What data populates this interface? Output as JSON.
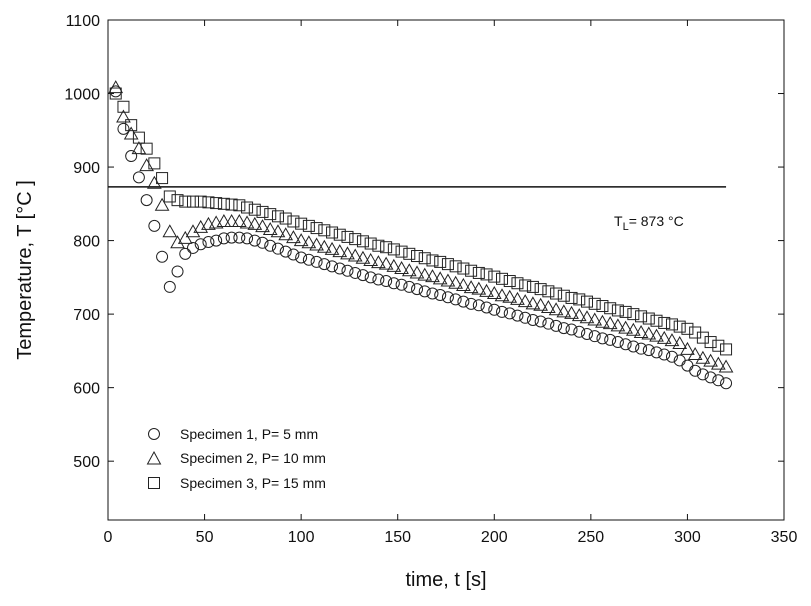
{
  "chart_data": {
    "type": "scatter",
    "title": "",
    "xlabel": "time, t [s]",
    "ylabel": "Temperature, T [°C ]",
    "xlim": [
      0,
      350
    ],
    "ylim": [
      420,
      1100
    ],
    "x_ticks": [
      0,
      50,
      100,
      150,
      200,
      250,
      300,
      350
    ],
    "y_ticks": [
      500,
      600,
      700,
      800,
      900,
      1000,
      1100
    ],
    "grid": false,
    "legend_position": "lower-left",
    "reference_line": {
      "y": 873,
      "x_range": [
        0,
        320
      ]
    },
    "annotation": {
      "prefix": "T",
      "subscript": "L",
      "suffix": "= 873 °C"
    },
    "series": [
      {
        "name": "Specimen 1, P= 5 mm",
        "marker": "circle",
        "color": "#222222",
        "x": [
          4,
          8,
          12,
          16,
          20,
          24,
          28,
          32,
          36,
          40,
          44,
          48,
          52,
          56,
          60,
          64,
          68,
          72,
          76,
          80,
          84,
          88,
          92,
          96,
          100,
          104,
          108,
          112,
          116,
          120,
          124,
          128,
          132,
          136,
          140,
          144,
          148,
          152,
          156,
          160,
          164,
          168,
          172,
          176,
          180,
          184,
          188,
          192,
          196,
          200,
          204,
          208,
          212,
          216,
          220,
          224,
          228,
          232,
          236,
          240,
          244,
          248,
          252,
          256,
          260,
          264,
          268,
          272,
          276,
          280,
          284,
          288,
          292,
          296,
          300,
          304,
          308,
          312,
          316,
          320
        ],
        "y": [
          1003,
          952,
          915,
          886,
          855,
          820,
          778,
          737,
          758,
          782,
          790,
          795,
          798,
          800,
          803,
          804,
          804,
          803,
          800,
          797,
          793,
          789,
          785,
          781,
          777,
          774,
          771,
          768,
          765,
          762,
          759,
          756,
          753,
          750,
          747,
          745,
          742,
          740,
          737,
          734,
          731,
          728,
          726,
          723,
          720,
          717,
          714,
          712,
          709,
          706,
          703,
          701,
          698,
          695,
          692,
          690,
          687,
          684,
          681,
          679,
          676,
          673,
          670,
          667,
          665,
          662,
          659,
          656,
          653,
          651,
          648,
          645,
          642,
          637,
          630,
          623,
          618,
          614,
          610,
          606
        ]
      },
      {
        "name": "Specimen 2, P= 10 mm",
        "marker": "triangle",
        "color": "#222222",
        "x": [
          4,
          8,
          12,
          16,
          20,
          24,
          28,
          32,
          36,
          40,
          44,
          48,
          52,
          56,
          60,
          64,
          68,
          72,
          76,
          80,
          84,
          88,
          92,
          96,
          100,
          104,
          108,
          112,
          116,
          120,
          124,
          128,
          132,
          136,
          140,
          144,
          148,
          152,
          156,
          160,
          164,
          168,
          172,
          176,
          180,
          184,
          188,
          192,
          196,
          200,
          204,
          208,
          212,
          216,
          220,
          224,
          228,
          232,
          236,
          240,
          244,
          248,
          252,
          256,
          260,
          264,
          268,
          272,
          276,
          280,
          284,
          288,
          292,
          296,
          300,
          304,
          308,
          312,
          316,
          320
        ],
        "y": [
          1008,
          968,
          945,
          925,
          902,
          878,
          848,
          812,
          797,
          803,
          812,
          818,
          822,
          824,
          826,
          826,
          826,
          824,
          822,
          819,
          815,
          812,
          808,
          804,
          800,
          797,
          794,
          791,
          788,
          785,
          782,
          779,
          776,
          773,
          770,
          768,
          765,
          762,
          759,
          756,
          753,
          751,
          748,
          745,
          742,
          739,
          736,
          734,
          731,
          728,
          725,
          723,
          720,
          717,
          714,
          712,
          709,
          706,
          703,
          701,
          698,
          695,
          692,
          689,
          687,
          684,
          681,
          678,
          675,
          673,
          670,
          667,
          664,
          660,
          652,
          645,
          640,
          636,
          632,
          628
        ]
      },
      {
        "name": "Specimen 3, P= 15 mm",
        "marker": "square",
        "color": "#222222",
        "x": [
          4,
          8,
          12,
          16,
          20,
          24,
          28,
          32,
          36,
          40,
          44,
          48,
          52,
          56,
          60,
          64,
          68,
          72,
          76,
          80,
          84,
          88,
          92,
          96,
          100,
          104,
          108,
          112,
          116,
          120,
          124,
          128,
          132,
          136,
          140,
          144,
          148,
          152,
          156,
          160,
          164,
          168,
          172,
          176,
          180,
          184,
          188,
          192,
          196,
          200,
          204,
          208,
          212,
          216,
          220,
          224,
          228,
          232,
          236,
          240,
          244,
          248,
          252,
          256,
          260,
          264,
          268,
          272,
          276,
          280,
          284,
          288,
          292,
          296,
          300,
          304,
          308,
          312,
          316,
          320
        ],
        "y": [
          1000,
          982,
          957,
          940,
          925,
          905,
          885,
          860,
          855,
          853,
          853,
          853,
          852,
          851,
          850,
          849,
          848,
          845,
          842,
          839,
          836,
          833,
          830,
          826,
          823,
          820,
          817,
          814,
          811,
          808,
          805,
          802,
          799,
          796,
          793,
          791,
          788,
          785,
          782,
          779,
          776,
          773,
          771,
          768,
          765,
          762,
          759,
          756,
          754,
          751,
          748,
          745,
          742,
          739,
          737,
          734,
          731,
          728,
          725,
          722,
          720,
          717,
          714,
          711,
          708,
          705,
          703,
          700,
          697,
          694,
          691,
          688,
          686,
          683,
          680,
          675,
          668,
          662,
          657,
          652
        ]
      }
    ]
  }
}
